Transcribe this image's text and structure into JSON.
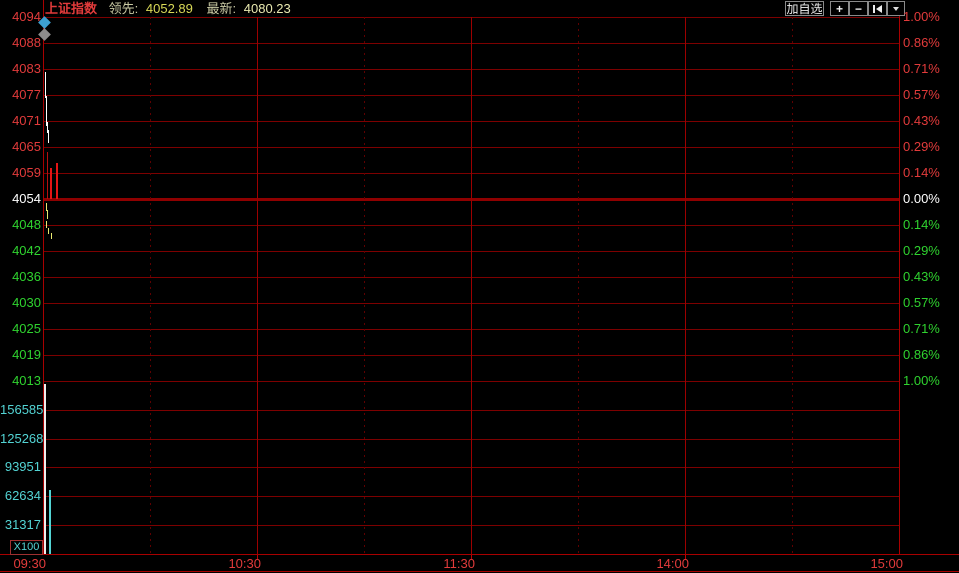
{
  "header": {
    "symbol": "上证指数",
    "leading_label": "领先:",
    "leading_value": "4052.89",
    "latest_label": "最新:",
    "latest_value": "4080.23"
  },
  "toolbar": {
    "add_watchlist_label": "加自选",
    "zoom_in_icon": "+",
    "zoom_out_icon": "−"
  },
  "price_axis": {
    "labels": [
      "4094",
      "4088",
      "4083",
      "4077",
      "4071",
      "4065",
      "4059",
      "4054",
      "4048",
      "4042",
      "4036",
      "4030",
      "4025",
      "4019",
      "4013"
    ]
  },
  "percent_axis": {
    "labels": [
      "1.00%",
      "0.86%",
      "0.71%",
      "0.57%",
      "0.43%",
      "0.29%",
      "0.14%",
      "0.00%",
      "0.14%",
      "0.29%",
      "0.43%",
      "0.57%",
      "0.71%",
      "0.86%",
      "1.00%"
    ]
  },
  "volume_axis": {
    "labels": [
      "156585",
      "125268",
      "93951",
      "62634",
      "31317"
    ],
    "unit": "X100"
  },
  "time_axis": {
    "labels": [
      "09:30",
      "10:30",
      "11:30",
      "14:00",
      "15:00"
    ]
  },
  "colors": {
    "up": "#e23b3b",
    "down": "#2fd32f",
    "flat": "#ffffff",
    "volume_text": "#53d4d4",
    "grid": "#7d0000",
    "axis": "#a80000",
    "price_line": "#ffffff",
    "leading_line": "#e8e870",
    "marker_blue": "#3d9fd0",
    "marker_gray": "#8c8c8c"
  },
  "chart_data": {
    "type": "line",
    "title": "上证指数 分时",
    "x_ticks": [
      "09:30",
      "10:30",
      "11:30",
      "14:00",
      "15:00"
    ],
    "left_y_ticks": [
      4094,
      4088,
      4083,
      4077,
      4071,
      4065,
      4059,
      4054,
      4048,
      4042,
      4036,
      4030,
      4025,
      4019,
      4013
    ],
    "right_y_ticks_pct": [
      1.0,
      0.86,
      0.71,
      0.57,
      0.43,
      0.29,
      0.14,
      0.0,
      -0.14,
      -0.29,
      -0.43,
      -0.57,
      -0.71,
      -0.86,
      -1.0
    ],
    "base_price_tick": 4054,
    "volume_ticks": [
      156585,
      125268,
      93951,
      62634,
      31317
    ],
    "volume_unit": "X100",
    "quotes": {
      "leading": 4052.89,
      "latest": 4080.23
    },
    "series": [
      {
        "name": "price",
        "color": "#ffffff",
        "points_est": [
          [
            "09:30",
            4083
          ],
          [
            "09:31",
            4074
          ],
          [
            "09:32",
            4066
          ]
        ]
      },
      {
        "name": "leading",
        "color": "#e8e870",
        "points_est": [
          [
            "09:31",
            4053
          ],
          [
            "09:33",
            4047.5
          ]
        ]
      }
    ],
    "volume_bars_est": [
      {
        "t": "09:30",
        "height_frac": 1.0,
        "color": "#ffffff"
      },
      {
        "t": "09:31",
        "height_frac": 0.38,
        "color": "#53d4d4"
      }
    ],
    "grid": "on",
    "legend_position": "none"
  }
}
